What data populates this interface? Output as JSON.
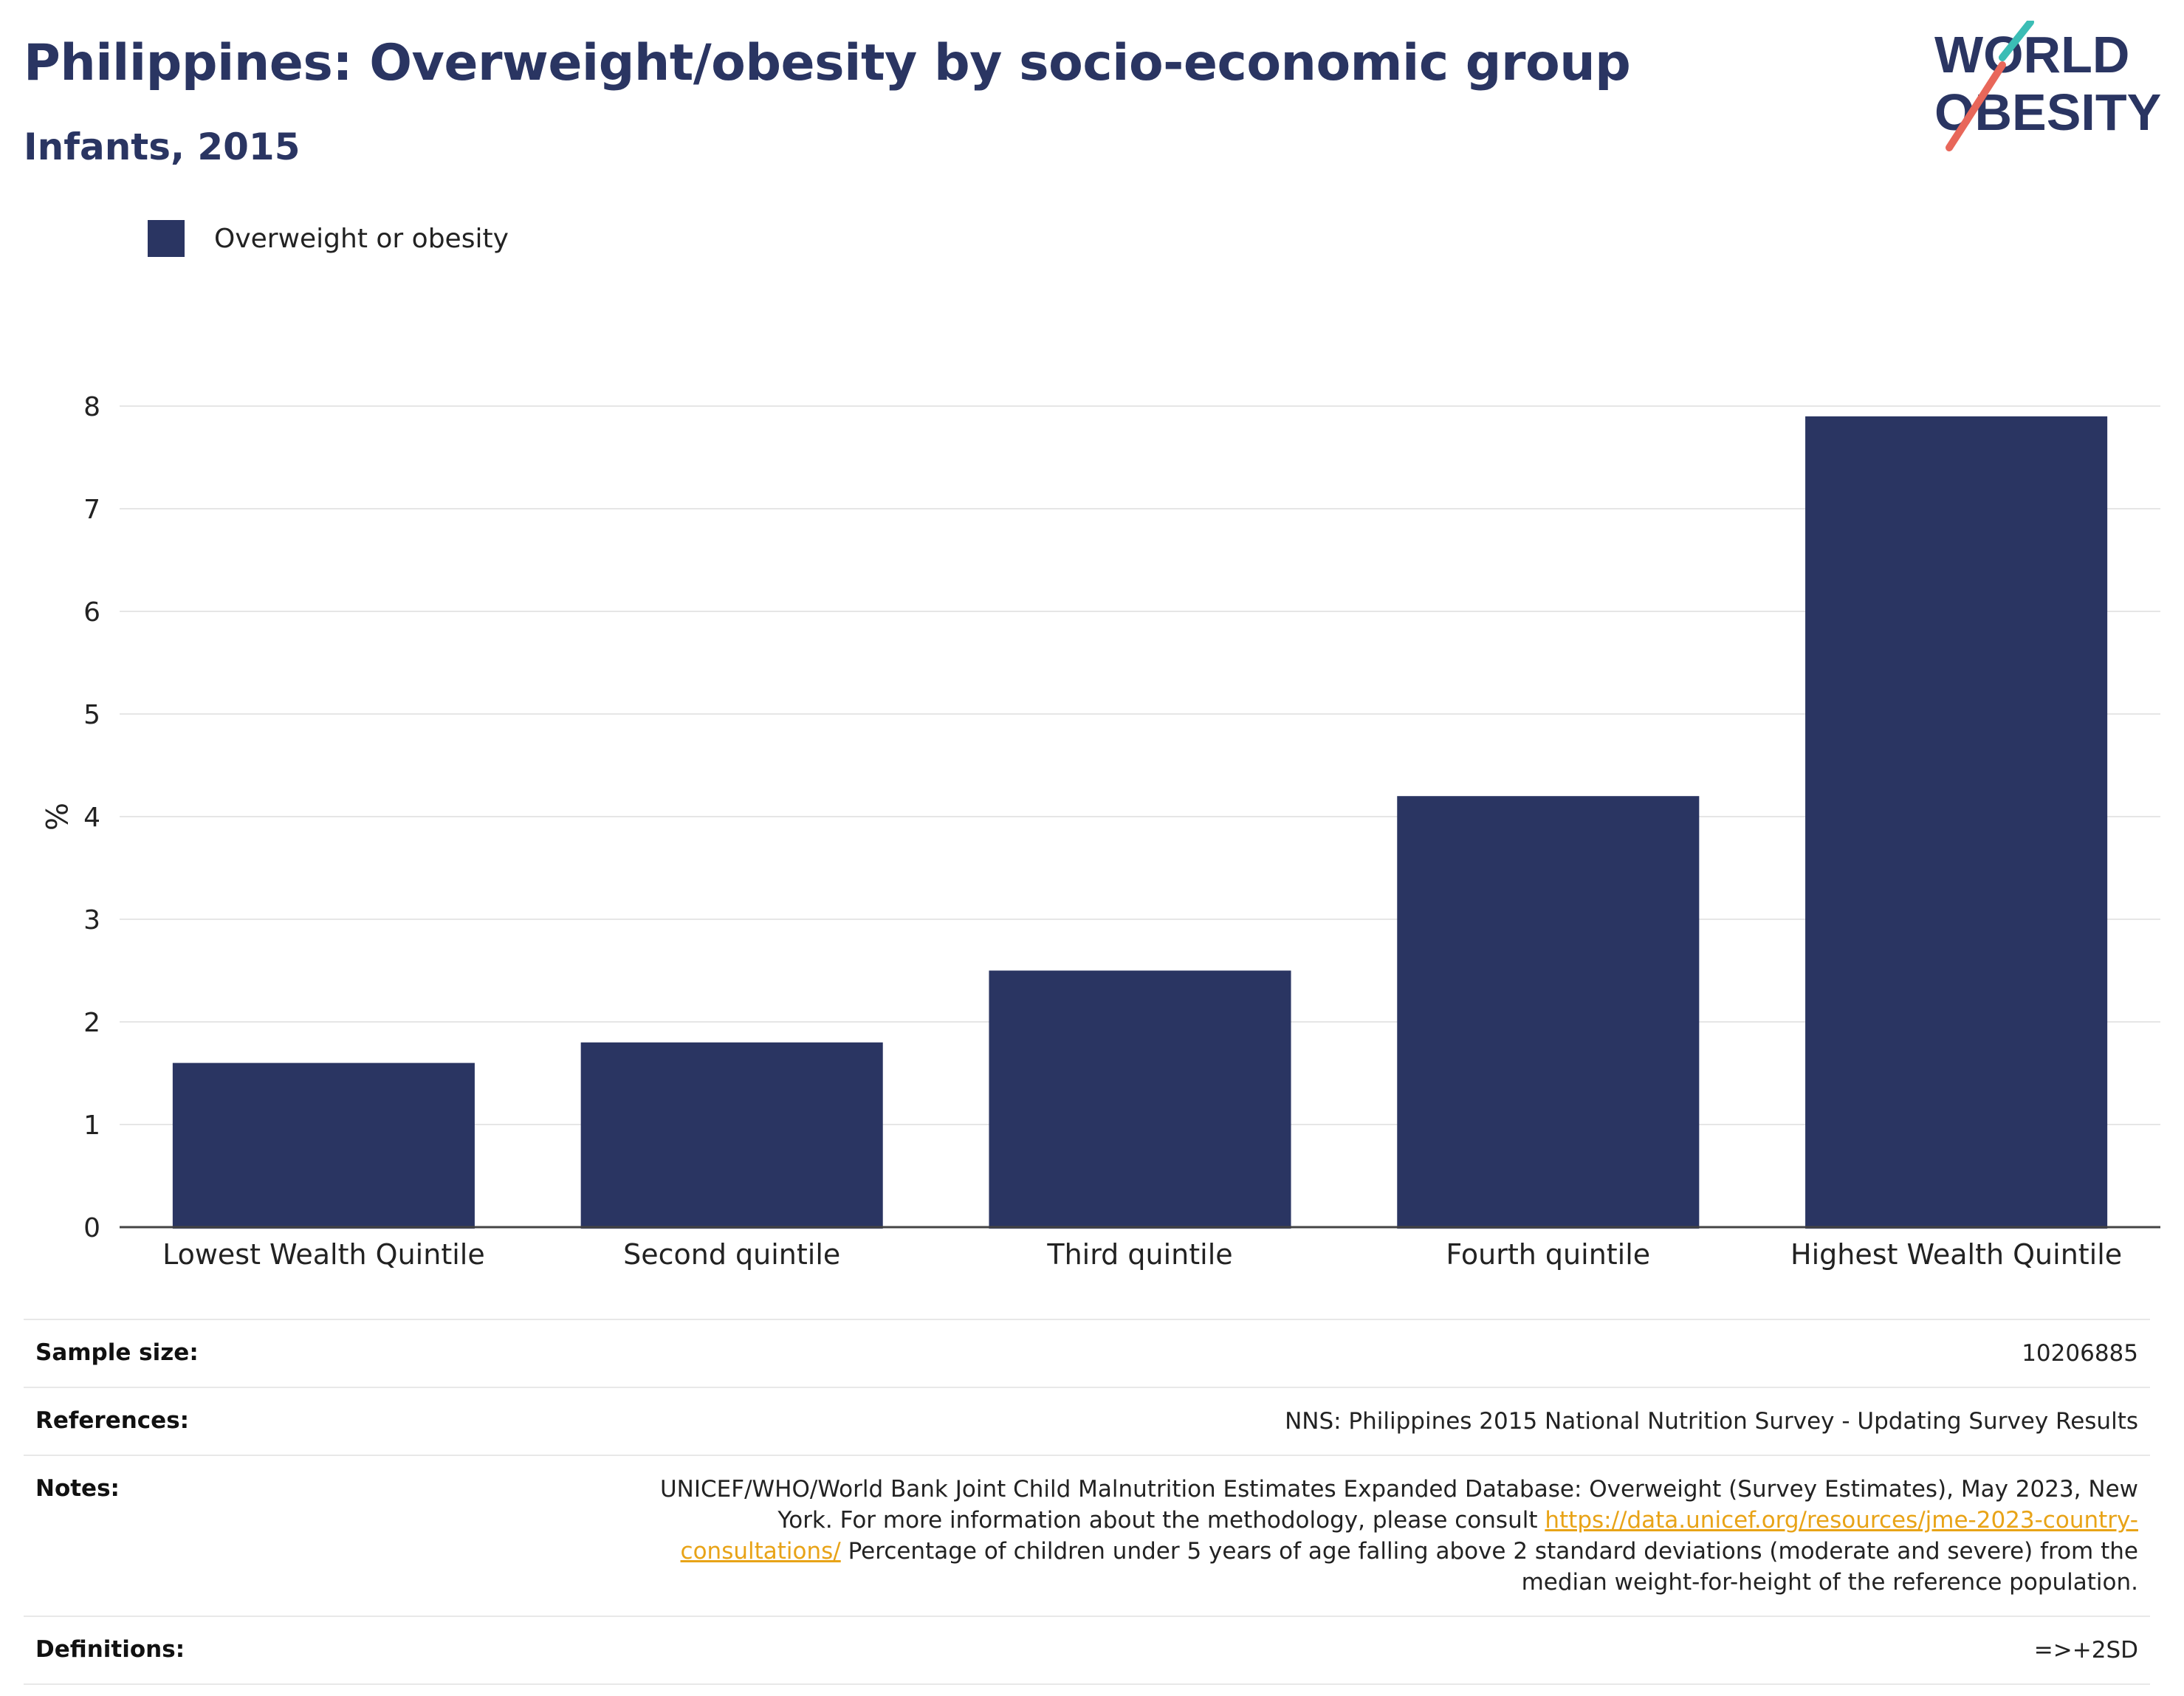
{
  "header": {
    "title": "Philippines: Overweight/obesity by socio-economic group",
    "subtitle": "Infants, 2015"
  },
  "logo": {
    "line1": "WORLD",
    "line2": "OBESITY",
    "colors": {
      "text": "#2a3562",
      "accent_teal": "#3bbdb5",
      "accent_red": "#e8675a"
    }
  },
  "colors": {
    "bar": "#2a3562",
    "grid": "#e6e6e6",
    "axis": "#444444",
    "link": "#e8a317"
  },
  "chart_data": {
    "type": "bar",
    "categories": [
      "Lowest Wealth Quintile",
      "Second quintile",
      "Third quintile",
      "Fourth quintile",
      "Highest Wealth Quintile"
    ],
    "series": [
      {
        "name": "Overweight or obesity",
        "values": [
          1.6,
          1.8,
          2.5,
          4.2,
          7.9
        ]
      }
    ],
    "xlabel": "",
    "ylabel": "%",
    "ylim": [
      0,
      8
    ],
    "yticks": [
      0,
      1,
      2,
      3,
      4,
      5,
      6,
      7,
      8
    ],
    "grid": true,
    "legend": "top-left"
  },
  "info": {
    "sample_size_label": "Sample size:",
    "sample_size_value": "10206885",
    "references_label": "References:",
    "references_value": "NNS: Philippines 2015 National Nutrition Survey - Updating Survey Results",
    "notes_label": "Notes:",
    "notes_text_before": "UNICEF/WHO/World Bank Joint Child Malnutrition Estimates Expanded Database: Overweight (Survey Estimates), May 2023, New York. For more information about the methodology, please consult ",
    "notes_link": "https://data.unicef.org/resources/jme-2023-country-consultations/",
    "notes_text_after": " Percentage of children under 5 years of age falling above 2 standard deviations (moderate and severe) from the median weight-for-height of the reference population.",
    "definitions_label": "Definitions:",
    "definitions_value": "=>+2SD"
  }
}
